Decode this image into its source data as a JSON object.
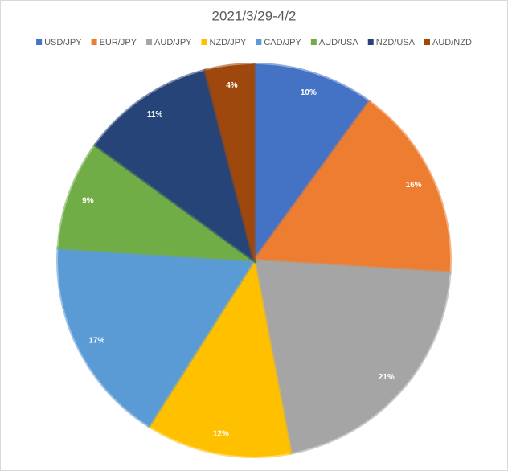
{
  "chart_data": {
    "type": "pie",
    "title": "2021/3/29-4/2",
    "categories": [
      "USD/JPY",
      "EUR/JPY",
      "AUD/JPY",
      "NZD/JPY",
      "CAD/JPY",
      "AUD/USA",
      "NZD/USA",
      "AUD/NZD"
    ],
    "values": [
      10,
      16,
      21,
      12,
      17,
      9,
      11,
      4
    ],
    "value_labels": [
      "10%",
      "16%",
      "21%",
      "12%",
      "17%",
      "9%",
      "11%",
      "4%"
    ],
    "colors": [
      "#4472c4",
      "#ed7d31",
      "#a5a5a5",
      "#ffc000",
      "#5b9bd5",
      "#70ad47",
      "#264478",
      "#9e480e"
    ],
    "legend": "top"
  }
}
